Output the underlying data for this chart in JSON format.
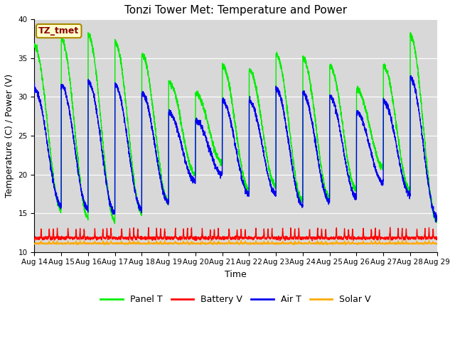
{
  "title": "Tonzi Tower Met: Temperature and Power",
  "xlabel": "Time",
  "ylabel": "Temperature (C) / Power (V)",
  "ylim": [
    10,
    40
  ],
  "yticks": [
    10,
    15,
    20,
    25,
    30,
    35,
    40
  ],
  "xtick_labels": [
    "Aug 14",
    "Aug 15",
    "Aug 16",
    "Aug 17",
    "Aug 18",
    "Aug 19",
    "Aug 20",
    "Aug 21",
    "Aug 22",
    "Aug 23",
    "Aug 24",
    "Aug 25",
    "Aug 26",
    "Aug 27",
    "Aug 28",
    "Aug 29"
  ],
  "annotation_text": "TZ_tmet",
  "annotation_color": "#880000",
  "annotation_bg": "#ffffcc",
  "annotation_border": "#aa8800",
  "panel_t_color": "#00ee00",
  "battery_v_color": "#ff0000",
  "air_t_color": "#0000ee",
  "solar_v_color": "#ffaa00",
  "bg_color": "#d8d8d8",
  "legend_labels": [
    "Panel T",
    "Battery V",
    "Air T",
    "Solar V"
  ],
  "n_days": 15,
  "panel_t_base": 26.0,
  "panel_t_amp": 10.5,
  "air_t_base": 23.5,
  "air_t_amp": 7.5,
  "battery_v_base": 11.8,
  "solar_v_base": 11.1
}
